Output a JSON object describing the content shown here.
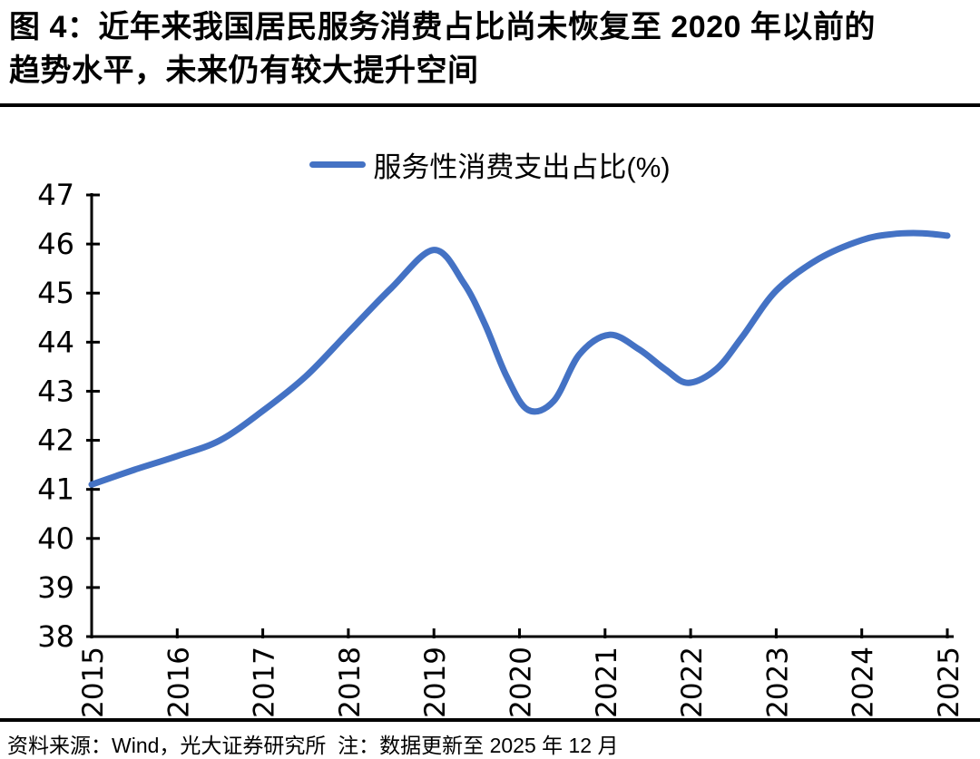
{
  "header": {
    "title_lines": [
      "图 4：近年来我国居民服务消费占比尚未恢复至 2020 年以前的",
      "趋势水平，未来仍有较大提升空间"
    ]
  },
  "legend": {
    "label": "服务性消费支出占比(%)"
  },
  "footer": {
    "source_note": "资料来源：Wind，光大证券研究所  注：数据更新至 2025 年 12 月"
  },
  "colors": {
    "line": "#4472C4",
    "axis": "#000000",
    "text": "#000000",
    "background": "#FFFFFF"
  },
  "chart_data": {
    "type": "line",
    "title": "",
    "xlabel": "",
    "ylabel": "",
    "grid": false,
    "legend_position": "top-center",
    "xlim": [
      2015,
      2025
    ],
    "ylim": [
      38,
      47
    ],
    "x_ticks": [
      2015,
      2016,
      2017,
      2018,
      2019,
      2020,
      2021,
      2022,
      2023,
      2024,
      2025
    ],
    "y_ticks": [
      38,
      39,
      40,
      41,
      42,
      43,
      44,
      45,
      46,
      47
    ],
    "series": [
      {
        "name": "服务性消费支出占比(%)",
        "x": [
          2015.0,
          2015.5,
          2016.0,
          2016.5,
          2017.0,
          2017.5,
          2018.0,
          2018.5,
          2019.0,
          2019.35,
          2019.6,
          2019.85,
          2020.1,
          2020.4,
          2020.7,
          2021.05,
          2021.4,
          2021.7,
          2021.97,
          2022.3,
          2022.6,
          2023.0,
          2023.5,
          2024.0,
          2024.35,
          2024.7,
          2025.0
        ],
        "y": [
          41.1,
          41.4,
          41.68,
          42.0,
          42.6,
          43.3,
          44.2,
          45.1,
          45.88,
          45.2,
          44.35,
          43.3,
          42.62,
          42.8,
          43.75,
          44.15,
          43.85,
          43.45,
          43.17,
          43.45,
          44.1,
          45.05,
          45.7,
          46.08,
          46.2,
          46.22,
          46.17
        ]
      }
    ]
  }
}
